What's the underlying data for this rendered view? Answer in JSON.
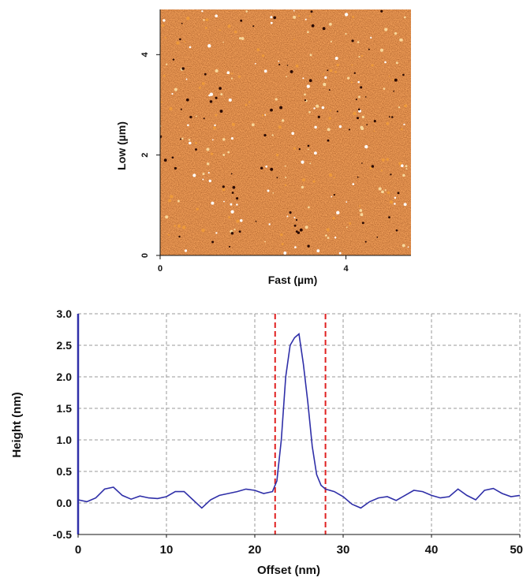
{
  "chart_data": [
    {
      "type": "heatmap",
      "xlabel": "Fast (µm)",
      "ylabel": "Low (µm)",
      "xlim": [
        0,
        5.4
      ],
      "ylim": [
        0,
        4.9
      ],
      "x_ticks": [
        0,
        4
      ],
      "y_ticks": [
        0,
        2,
        4
      ],
      "colormap": [
        "#5c1a07",
        "#8a2d0c",
        "#b24715",
        "#d8701f",
        "#f5d08a",
        "#ffffff"
      ]
    },
    {
      "type": "line",
      "xlabel": "Offset (nm)",
      "ylabel": "Height (nm)",
      "xlim": [
        0,
        50
      ],
      "ylim": [
        -0.5,
        3.0
      ],
      "x_ticks": [
        0,
        10,
        20,
        30,
        40,
        50
      ],
      "y_ticks": [
        3.0,
        2.5,
        2.0,
        1.5,
        1.0,
        0.5,
        0.0,
        -0.5
      ],
      "y_tick_labels": [
        "3.0",
        "2.5",
        "2.0",
        "1.5",
        "1.0",
        "0.5",
        "0.0",
        "-0.5"
      ],
      "grid": true,
      "line_color": "#2f2fa8",
      "marker_color": "#e02020",
      "markers_x": [
        22.3,
        28.0
      ],
      "series": [
        {
          "x": [
            0,
            1,
            2,
            3,
            4,
            5,
            6,
            7,
            8,
            9,
            10,
            11,
            12,
            13,
            14,
            15,
            16,
            17,
            18,
            19,
            20,
            21,
            22,
            22.5,
            23,
            23.5,
            24,
            24.5,
            25,
            25.5,
            26,
            26.5,
            27,
            27.5,
            28,
            29,
            30,
            31,
            32,
            33,
            34,
            35,
            36,
            37,
            38,
            39,
            40,
            41,
            42,
            43,
            44,
            45,
            46,
            47,
            48,
            49,
            50
          ],
          "y": [
            0.05,
            0.02,
            0.08,
            0.22,
            0.25,
            0.12,
            0.06,
            0.11,
            0.08,
            0.07,
            0.1,
            0.18,
            0.18,
            0.05,
            -0.08,
            0.05,
            0.12,
            0.15,
            0.18,
            0.22,
            0.2,
            0.15,
            0.18,
            0.35,
            1.0,
            2.0,
            2.5,
            2.62,
            2.68,
            2.2,
            1.6,
            0.9,
            0.45,
            0.28,
            0.22,
            0.18,
            0.1,
            -0.02,
            -0.08,
            0.02,
            0.08,
            0.1,
            0.04,
            0.12,
            0.2,
            0.18,
            0.12,
            0.08,
            0.1,
            0.22,
            0.12,
            0.05,
            0.2,
            0.23,
            0.15,
            0.1,
            0.12
          ]
        }
      ]
    }
  ]
}
